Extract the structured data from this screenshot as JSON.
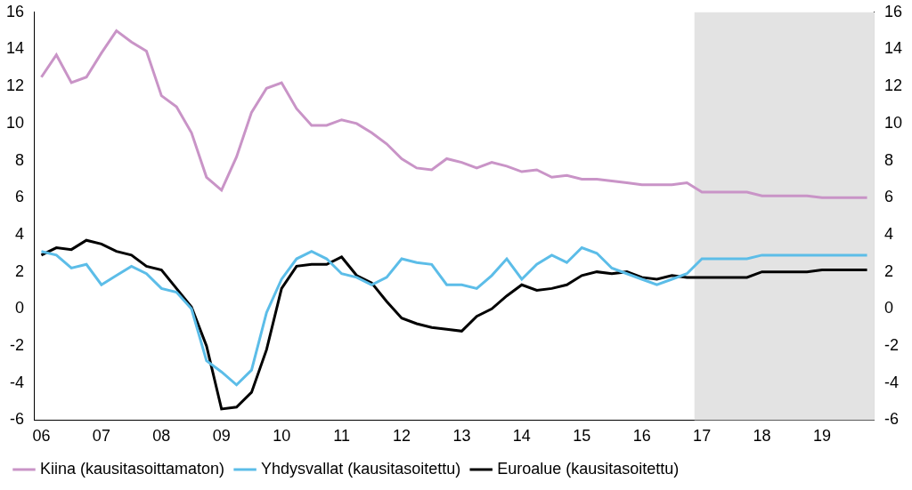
{
  "chart_data": {
    "type": "line",
    "categories": [
      "06",
      null,
      null,
      null,
      "07",
      null,
      null,
      null,
      "08",
      null,
      null,
      null,
      "09",
      null,
      null,
      null,
      "10",
      null,
      null,
      null,
      "11",
      null,
      null,
      null,
      "12",
      null,
      null,
      null,
      "13",
      null,
      null,
      null,
      "14",
      null,
      null,
      null,
      "15",
      null,
      null,
      null,
      "16",
      null,
      null,
      null,
      "17",
      null,
      null,
      null,
      "18",
      null,
      null,
      null,
      "19",
      null,
      null,
      null
    ],
    "series": [
      {
        "name": "Kiina (kausitasoittamaton)",
        "color": "#c994c7",
        "values": [
          12.5,
          13.7,
          12.2,
          12.5,
          13.8,
          15.0,
          14.4,
          13.9,
          11.5,
          10.9,
          9.5,
          7.1,
          6.4,
          8.2,
          10.6,
          11.9,
          12.2,
          10.8,
          9.9,
          9.9,
          10.2,
          10.0,
          9.5,
          8.9,
          8.1,
          7.6,
          7.5,
          8.1,
          7.9,
          7.6,
          7.9,
          7.7,
          7.4,
          7.5,
          7.1,
          7.2,
          7.0,
          7.0,
          6.9,
          6.8,
          6.7,
          6.7,
          6.7,
          6.8,
          6.3,
          6.3,
          6.3,
          6.3,
          6.1,
          6.1,
          6.1,
          6.1,
          6.0,
          6.0,
          6.0,
          6.0
        ]
      },
      {
        "name": "Yhdysvallat (kausitasoitettu)",
        "color": "#5cbde8",
        "values": [
          3.1,
          2.9,
          2.2,
          2.4,
          1.3,
          1.8,
          2.3,
          1.9,
          1.1,
          0.9,
          0.0,
          -2.8,
          -3.4,
          -4.1,
          -3.3,
          -0.2,
          1.6,
          2.7,
          3.1,
          2.7,
          1.9,
          1.7,
          1.3,
          1.7,
          2.7,
          2.5,
          2.4,
          1.3,
          1.3,
          1.1,
          1.8,
          2.7,
          1.6,
          2.4,
          2.9,
          2.5,
          3.3,
          3.0,
          2.2,
          1.9,
          1.6,
          1.3,
          1.6,
          1.9,
          2.7,
          2.7,
          2.7,
          2.7,
          2.9,
          2.9,
          2.9,
          2.9,
          2.9,
          2.9,
          2.9,
          2.9
        ]
      },
      {
        "name": "Euroalue (kausitasoitettu)",
        "color": "#000000",
        "values": [
          2.9,
          3.3,
          3.2,
          3.7,
          3.5,
          3.1,
          2.9,
          2.3,
          2.1,
          1.1,
          0.1,
          -2.0,
          -5.4,
          -5.3,
          -4.5,
          -2.2,
          1.1,
          2.3,
          2.4,
          2.4,
          2.8,
          1.8,
          1.4,
          0.4,
          -0.5,
          -0.8,
          -1.0,
          -1.1,
          -1.2,
          -0.4,
          0.0,
          0.7,
          1.3,
          1.0,
          1.1,
          1.3,
          1.8,
          2.0,
          1.9,
          2.0,
          1.7,
          1.6,
          1.8,
          1.7,
          1.7,
          1.7,
          1.7,
          1.7,
          2.0,
          2.0,
          2.0,
          2.0,
          2.1,
          2.1,
          2.1,
          2.1
        ]
      }
    ],
    "shaded_from": "17",
    "ylim": [
      -6,
      16
    ],
    "yticks": [
      -6,
      -4,
      -2,
      0,
      2,
      4,
      6,
      8,
      10,
      12,
      14,
      16
    ],
    "y2lim": [
      -6,
      16
    ],
    "y2ticks": [
      -6,
      -4,
      -2,
      0,
      2,
      4,
      6,
      8,
      10,
      12,
      14,
      16
    ],
    "grid": false,
    "legend": "bottom"
  }
}
